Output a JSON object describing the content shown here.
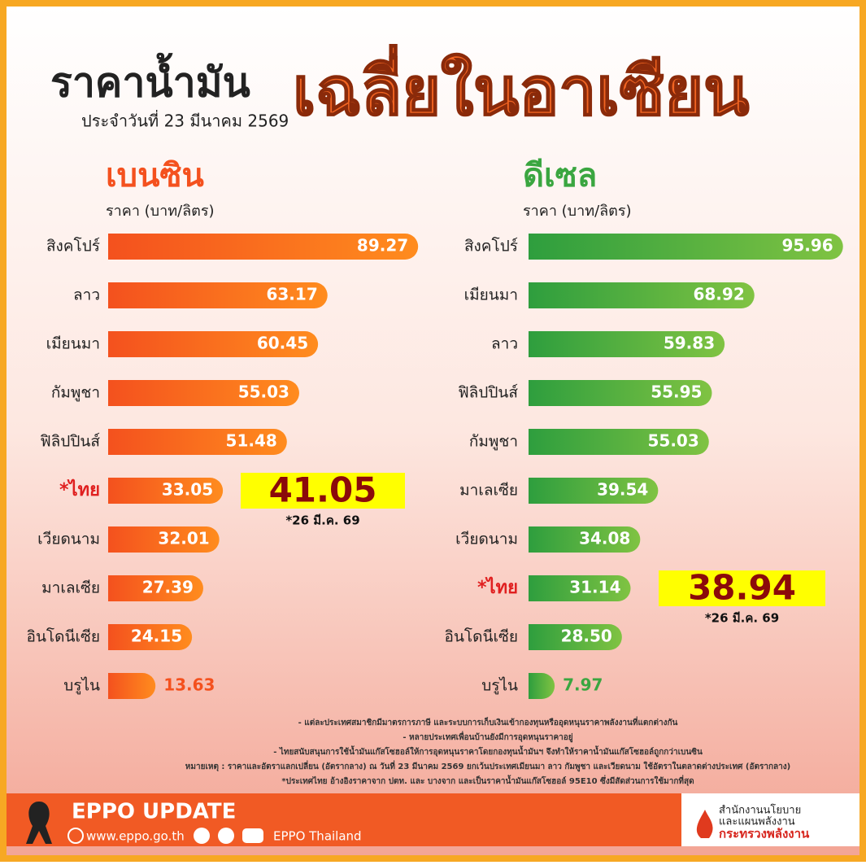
{
  "header": {
    "title_left": "ราคาน้ำมัน",
    "title_right": "เฉลี่ยในอาเซียน",
    "date": "ประจำวันที่  23 มีนาคม 2569"
  },
  "chart_data": [
    {
      "type": "bar",
      "title": "เบนซิน",
      "subtitle": "ราคา (บาท/ลิตร)",
      "color": "#f4511e",
      "categories": [
        "สิงคโปร์",
        "ลาว",
        "เมียนมา",
        "กัมพูชา",
        "ฟิลิปปินส์",
        "*ไทย",
        "เวียดนาม",
        "มาเลเซีย",
        "อินโดนีเซีย",
        "บรูไน"
      ],
      "values": [
        89.27,
        63.17,
        60.45,
        55.03,
        51.48,
        33.05,
        32.01,
        27.39,
        24.15,
        13.63
      ],
      "value_labels": [
        "89.27",
        "63.17",
        "60.45",
        "55.03",
        "51.48",
        "33.05",
        "32.01",
        "27.39",
        "24.15",
        "13.63"
      ],
      "annotation": {
        "text": "41.05",
        "note": "*26 มี.ค. 69"
      }
    },
    {
      "type": "bar",
      "title": "ดีเซล",
      "subtitle": "ราคา (บาท/ลิตร)",
      "color": "#3aa640",
      "categories": [
        "สิงคโปร์",
        "เมียนมา",
        "ลาว",
        "ฟิลิปปินส์",
        "กัมพูชา",
        "มาเลเซีย",
        "เวียดนาม",
        "*ไทย",
        "อินโดนีเซีย",
        "บรูไน"
      ],
      "values": [
        95.96,
        68.92,
        59.83,
        55.95,
        55.03,
        39.54,
        34.08,
        31.14,
        28.5,
        7.97
      ],
      "value_labels": [
        "95.96",
        "68.92",
        "59.83",
        "55.95",
        "55.03",
        "39.54",
        "34.08",
        "31.14",
        "28.50",
        "7.97"
      ],
      "annotation": {
        "text": "38.94",
        "note": "*26 มี.ค. 69"
      }
    }
  ],
  "notes": [
    "- แต่ละประเทศสมาชิกมีมาตรการภาษี และระบบการเก็บเงินเข้ากองทุนหรืออุดหนุนราคาพลังงานที่แตกต่างกัน",
    "- หลายประเทศเพื่อนบ้านยังมีการอุดหนุนราคาอยู่",
    "- ไทยสนับสนุนการใช้น้ำมันแก๊สโซฮอล์ให้การอุดหนุนราคาโดยกองทุนน้ำมันฯ จึงทำให้ราคาน้ำมันแก๊สโซฮอล์ถูกกว่าเบนซิน",
    "หมายเหตุ : ราคาและอัตราแลกเปลี่ยน (อัตรากลาง) ณ วันที่ 23 มีนาคม 2569 ยกเว้นประเทศเมียนมา ลาว กัมพูชา และเวียดนาม ใช้อัตราในตลาดต่างประเทศ (อัตรากลาง)",
    "*ประเทศไทย อ้างอิงราคาจาก ปตท. และ บางจาก และเป็นราคาน้ำมันแก๊สโซฮอล์ 95E10 ซึ่งมีสัดส่วนการใช้มากที่สุด"
  ],
  "footer": {
    "brand": "EPPO UPDATE",
    "website": "www.eppo.go.th",
    "social": "EPPO Thailand",
    "org_line1": "สำนักงานนโยบาย",
    "org_line2": "และแผนพลังงาน",
    "org_line3": "กระทรวงพลังงาน"
  }
}
